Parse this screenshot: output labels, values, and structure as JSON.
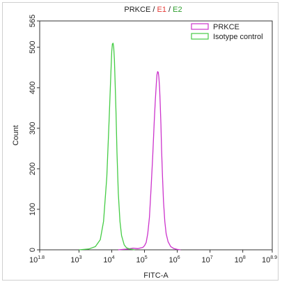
{
  "chart_data": {
    "type": "line",
    "title_parts": [
      {
        "text": "PRKCE",
        "color": "#222222"
      },
      {
        "text": " / ",
        "color": "#222222"
      },
      {
        "text": "E1",
        "color": "#e53935"
      },
      {
        "text": " / ",
        "color": "#222222"
      },
      {
        "text": "E2",
        "color": "#2e9e2e"
      }
    ],
    "xlabel": "FITC-A",
    "ylabel": "Count",
    "xscale": "log",
    "xlim_log10": [
      1.8,
      8.9
    ],
    "ylim": [
      0,
      565
    ],
    "x_ticks": [
      {
        "base": "10",
        "exp": "1.8",
        "log": 1.8
      },
      {
        "base": "10",
        "exp": "3",
        "log": 3
      },
      {
        "base": "10",
        "exp": "4",
        "log": 4
      },
      {
        "base": "10",
        "exp": "5",
        "log": 5
      },
      {
        "base": "10",
        "exp": "6",
        "log": 6
      },
      {
        "base": "10",
        "exp": "7",
        "log": 7
      },
      {
        "base": "10",
        "exp": "8",
        "log": 8
      },
      {
        "base": "10",
        "exp": "8.9",
        "log": 8.9
      }
    ],
    "y_ticks": [
      "0",
      "100",
      "200",
      "300",
      "400",
      "500",
      "565"
    ],
    "y_tick_values": [
      0,
      100,
      200,
      300,
      400,
      500,
      565
    ],
    "legend_position": "top-right",
    "grid": false,
    "series": [
      {
        "name": "PRKCE",
        "color": "#cc33cc",
        "x_log10": [
          4.2,
          4.35,
          4.5,
          4.65,
          4.8,
          4.95,
          5.0,
          5.05,
          5.1,
          5.15,
          5.2,
          5.25,
          5.3,
          5.33,
          5.36,
          5.38,
          5.4,
          5.42,
          5.44,
          5.46,
          5.48,
          5.5,
          5.52,
          5.55,
          5.58,
          5.62,
          5.66,
          5.72,
          5.8,
          5.9,
          6.0,
          6.1
        ],
        "values": [
          0,
          1,
          2,
          4,
          3,
          6,
          10,
          18,
          40,
          80,
          150,
          230,
          320,
          370,
          410,
          432,
          440,
          438,
          425,
          400,
          360,
          310,
          250,
          180,
          120,
          70,
          40,
          20,
          8,
          3,
          1,
          0
        ]
      },
      {
        "name": "Isotype control",
        "color": "#44cc44",
        "x_log10": [
          3.0,
          3.3,
          3.5,
          3.65,
          3.75,
          3.85,
          3.92,
          3.97,
          4.0,
          4.02,
          4.04,
          4.06,
          4.08,
          4.1,
          4.13,
          4.16,
          4.2,
          4.25,
          4.3,
          4.38,
          4.45,
          4.55,
          4.7
        ],
        "values": [
          0,
          2,
          8,
          25,
          70,
          180,
          320,
          430,
          490,
          508,
          510,
          500,
          470,
          420,
          340,
          240,
          140,
          70,
          35,
          12,
          5,
          2,
          0
        ]
      }
    ]
  }
}
